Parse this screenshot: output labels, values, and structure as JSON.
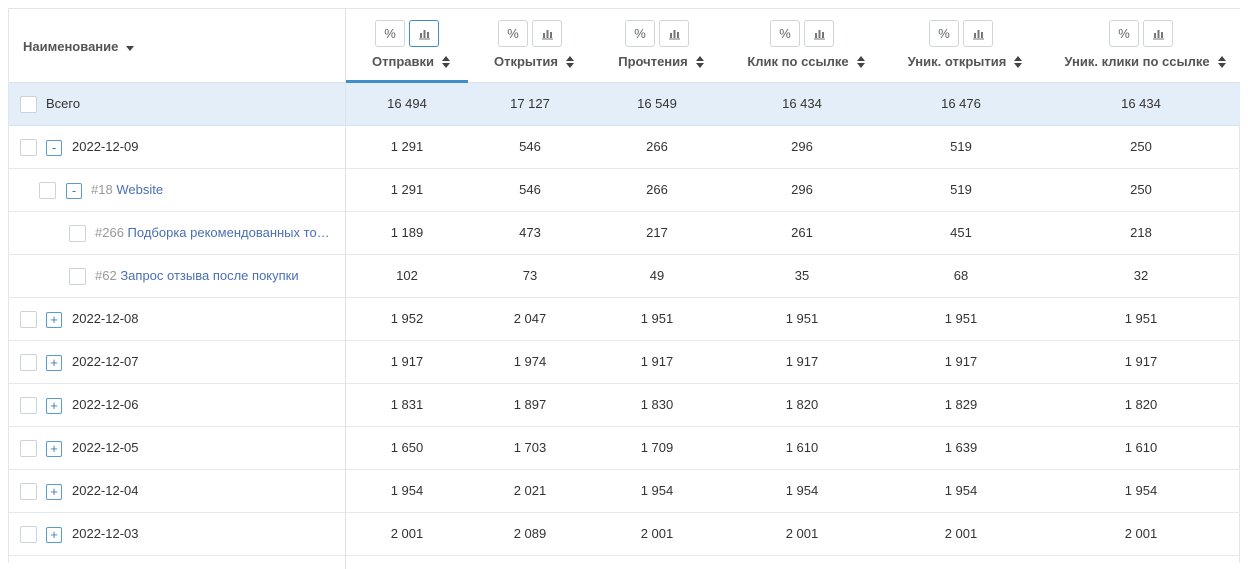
{
  "header": {
    "name_label": "Наименование",
    "percent_label": "%",
    "columns": [
      {
        "label": "Отправки"
      },
      {
        "label": "Открытия"
      },
      {
        "label": "Прочтения"
      },
      {
        "label": "Клик по ссылке"
      },
      {
        "label": "Уник. открытия"
      },
      {
        "label": "Уник. клики по ссылке"
      }
    ]
  },
  "rows": [
    {
      "kind": "total",
      "label": "Всего",
      "values": [
        "16 494",
        "17 127",
        "16 549",
        "16 434",
        "16 476",
        "16 434"
      ]
    },
    {
      "kind": "date",
      "toggle": "-",
      "label": "2022-12-09",
      "values": [
        "1 291",
        "546",
        "266",
        "296",
        "519",
        "250"
      ]
    },
    {
      "kind": "group",
      "toggle": "-",
      "num": "#18",
      "label": "Website",
      "values": [
        "1 291",
        "546",
        "266",
        "296",
        "519",
        "250"
      ]
    },
    {
      "kind": "item",
      "num": "#266",
      "label": "Подборка рекомендованных то…",
      "values": [
        "1 189",
        "473",
        "217",
        "261",
        "451",
        "218"
      ]
    },
    {
      "kind": "item",
      "num": "#62",
      "label": "Запрос отзыва после покупки",
      "values": [
        "102",
        "73",
        "49",
        "35",
        "68",
        "32"
      ]
    },
    {
      "kind": "date",
      "toggle": "+",
      "label": "2022-12-08",
      "values": [
        "1 952",
        "2 047",
        "1 951",
        "1 951",
        "1 951",
        "1 951"
      ]
    },
    {
      "kind": "date",
      "toggle": "+",
      "label": "2022-12-07",
      "values": [
        "1 917",
        "1 974",
        "1 917",
        "1 917",
        "1 917",
        "1 917"
      ]
    },
    {
      "kind": "date",
      "toggle": "+",
      "label": "2022-12-06",
      "values": [
        "1 831",
        "1 897",
        "1 830",
        "1 820",
        "1 829",
        "1 820"
      ]
    },
    {
      "kind": "date",
      "toggle": "+",
      "label": "2022-12-05",
      "values": [
        "1 650",
        "1 703",
        "1 709",
        "1 610",
        "1 639",
        "1 610"
      ]
    },
    {
      "kind": "date",
      "toggle": "+",
      "label": "2022-12-04",
      "values": [
        "1 954",
        "2 021",
        "1 954",
        "1 954",
        "1 954",
        "1 954"
      ]
    },
    {
      "kind": "date",
      "toggle": "+",
      "label": "2022-12-03",
      "values": [
        "2 001",
        "2 089",
        "2 001",
        "2 001",
        "2 001",
        "2 001"
      ]
    }
  ]
}
